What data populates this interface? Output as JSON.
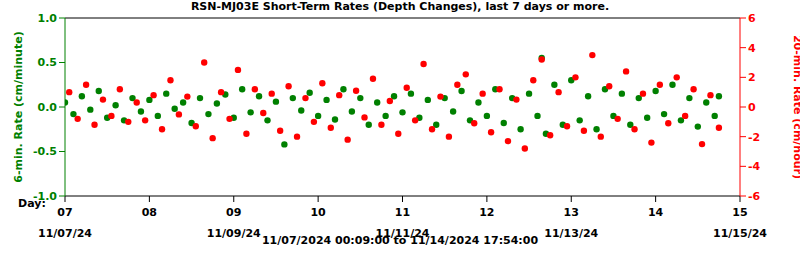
{
  "chart_data": {
    "type": "scatter",
    "title": "RSN-MJ03E Short-Term Rates (Depth Changes), last 7 days or more.",
    "subtitle": "11/07/2024 00:09:00 to 11/14/2024 17:54:00",
    "xlabel": "Day:",
    "ylabel": "6-min. Rate (cm/minute)",
    "y2label": "20-min. Rate (cm/hour)",
    "xlim": [
      7,
      15
    ],
    "xticks": [
      {
        "value": 7,
        "label": "07"
      },
      {
        "value": 8,
        "label": "08"
      },
      {
        "value": 9,
        "label": "09"
      },
      {
        "value": 10,
        "label": "10"
      },
      {
        "value": 11,
        "label": "11"
      },
      {
        "value": 12,
        "label": "12"
      },
      {
        "value": 13,
        "label": "13"
      },
      {
        "value": 14,
        "label": "14"
      },
      {
        "value": 15,
        "label": "15"
      }
    ],
    "x_date_labels": [
      {
        "value": 7,
        "label": "11/07/24"
      },
      {
        "value": 9,
        "label": "11/09/24"
      },
      {
        "value": 11,
        "label": "11/11/24"
      },
      {
        "value": 13,
        "label": "11/13/24"
      },
      {
        "value": 15,
        "label": "11/15/24"
      }
    ],
    "ylim": [
      -1,
      1
    ],
    "yticks": [
      {
        "value": -1,
        "label": "-1.0"
      },
      -0.5,
      {
        "value": 0,
        "label": "0.0"
      },
      0.5,
      {
        "value": 1,
        "label": "1.0"
      }
    ],
    "y2lim": [
      -6,
      6
    ],
    "y2ticks": [
      -6,
      -4,
      -2,
      0,
      2,
      4,
      6
    ],
    "marker": "circle",
    "series": [
      {
        "color": "#008000",
        "axis": "y",
        "x": [
          7.0,
          7.1,
          7.2,
          7.3,
          7.4,
          7.5,
          7.6,
          7.7,
          7.8,
          7.9,
          8.0,
          8.1,
          8.2,
          8.3,
          8.4,
          8.5,
          8.6,
          8.7,
          8.8,
          8.9,
          9.0,
          9.1,
          9.2,
          9.3,
          9.4,
          9.5,
          9.6,
          9.7,
          9.8,
          9.9,
          10.0,
          10.1,
          10.2,
          10.3,
          10.4,
          10.5,
          10.6,
          10.7,
          10.8,
          10.9,
          11.0,
          11.1,
          11.2,
          11.3,
          11.4,
          11.5,
          11.6,
          11.7,
          11.8,
          11.9,
          12.0,
          12.1,
          12.2,
          12.3,
          12.4,
          12.5,
          12.6,
          12.65,
          12.7,
          12.8,
          12.9,
          13.0,
          13.1,
          13.2,
          13.3,
          13.4,
          13.5,
          13.6,
          13.7,
          13.8,
          13.9,
          14.0,
          14.1,
          14.2,
          14.3,
          14.4,
          14.5,
          14.6,
          14.7,
          14.75
        ],
        "values": [
          0.05,
          -0.08,
          0.12,
          -0.03,
          0.18,
          -0.12,
          0.02,
          -0.15,
          0.1,
          -0.05,
          0.08,
          -0.1,
          0.15,
          -0.02,
          0.05,
          -0.18,
          0.1,
          -0.08,
          0.04,
          0.14,
          -0.12,
          0.2,
          -0.06,
          0.12,
          -0.15,
          0.06,
          -0.42,
          0.1,
          -0.04,
          0.16,
          -0.1,
          0.08,
          -0.14,
          0.2,
          -0.05,
          0.1,
          -0.2,
          0.05,
          -0.1,
          0.12,
          -0.06,
          0.15,
          -0.12,
          0.08,
          -0.2,
          0.1,
          -0.05,
          0.18,
          -0.15,
          0.05,
          -0.1,
          0.2,
          -0.18,
          0.1,
          -0.25,
          0.15,
          -0.1,
          0.55,
          -0.3,
          0.25,
          -0.2,
          0.3,
          -0.15,
          0.12,
          -0.25,
          0.2,
          -0.1,
          0.15,
          -0.2,
          0.1,
          -0.12,
          0.18,
          -0.08,
          0.25,
          -0.15,
          0.1,
          -0.22,
          0.05,
          -0.1,
          0.12
        ]
      },
      {
        "color": "#ff0000",
        "axis": "y2",
        "x": [
          7.05,
          7.15,
          7.25,
          7.35,
          7.45,
          7.55,
          7.65,
          7.75,
          7.85,
          7.95,
          8.05,
          8.15,
          8.25,
          8.35,
          8.45,
          8.55,
          8.65,
          8.75,
          8.85,
          8.95,
          9.05,
          9.15,
          9.25,
          9.35,
          9.45,
          9.55,
          9.65,
          9.75,
          9.85,
          9.95,
          10.05,
          10.15,
          10.25,
          10.35,
          10.45,
          10.55,
          10.65,
          10.75,
          10.85,
          10.95,
          11.05,
          11.15,
          11.25,
          11.35,
          11.45,
          11.55,
          11.65,
          11.75,
          11.85,
          11.95,
          12.05,
          12.15,
          12.25,
          12.35,
          12.45,
          12.55,
          12.65,
          12.75,
          12.85,
          12.95,
          13.05,
          13.15,
          13.25,
          13.35,
          13.45,
          13.55,
          13.65,
          13.75,
          13.85,
          13.95,
          14.05,
          14.15,
          14.25,
          14.35,
          14.45,
          14.55,
          14.65,
          14.75
        ],
        "values": [
          1.0,
          -0.8,
          1.5,
          -1.2,
          0.5,
          -0.6,
          1.2,
          -1.0,
          0.3,
          -0.9,
          0.8,
          -1.5,
          1.8,
          -0.5,
          0.7,
          -1.3,
          3.0,
          -2.1,
          1.0,
          -0.8,
          2.5,
          -1.8,
          1.2,
          -0.4,
          0.9,
          -1.6,
          1.4,
          -2.0,
          0.6,
          -1.0,
          1.6,
          -1.4,
          0.8,
          -2.2,
          1.1,
          -0.7,
          1.9,
          -1.2,
          0.4,
          -1.8,
          1.3,
          -0.9,
          2.9,
          -1.5,
          0.7,
          -2.0,
          1.5,
          2.2,
          -1.1,
          0.9,
          -1.7,
          1.2,
          -2.3,
          0.5,
          -2.8,
          1.8,
          3.2,
          -1.9,
          1.0,
          -1.3,
          2.0,
          -1.6,
          3.5,
          -2.0,
          1.4,
          -0.8,
          2.4,
          -1.5,
          0.9,
          -2.4,
          1.5,
          -1.1,
          2.0,
          -0.6,
          1.2,
          -2.5,
          0.8,
          -1.4
        ]
      }
    ]
  }
}
